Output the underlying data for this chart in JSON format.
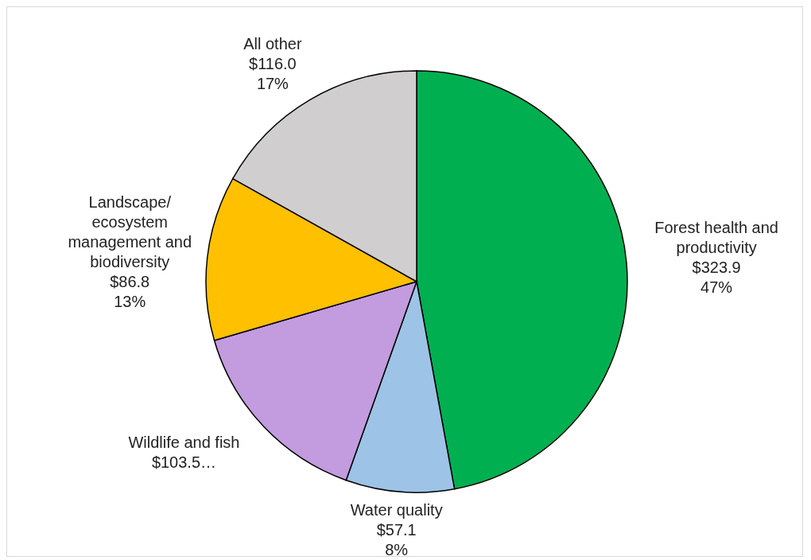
{
  "chart_data": {
    "type": "pie",
    "categories": [
      "Forest health and productivity",
      "Water quality",
      "Wildlife and fish",
      "Landscape/ecosystem management and biodiversity",
      "All other"
    ],
    "values": [
      323.9,
      57.1,
      103.5,
      86.8,
      116.0
    ],
    "colors": [
      "#00b050",
      "#9dc3e6",
      "#c39bdf",
      "#ffc000",
      "#d0cece"
    ],
    "value_labels": [
      "$323.9\n47%",
      "$57.1\n8%",
      "$103.5…",
      "$86.8\n13%",
      "$116.0\n17%"
    ],
    "legend": false
  }
}
